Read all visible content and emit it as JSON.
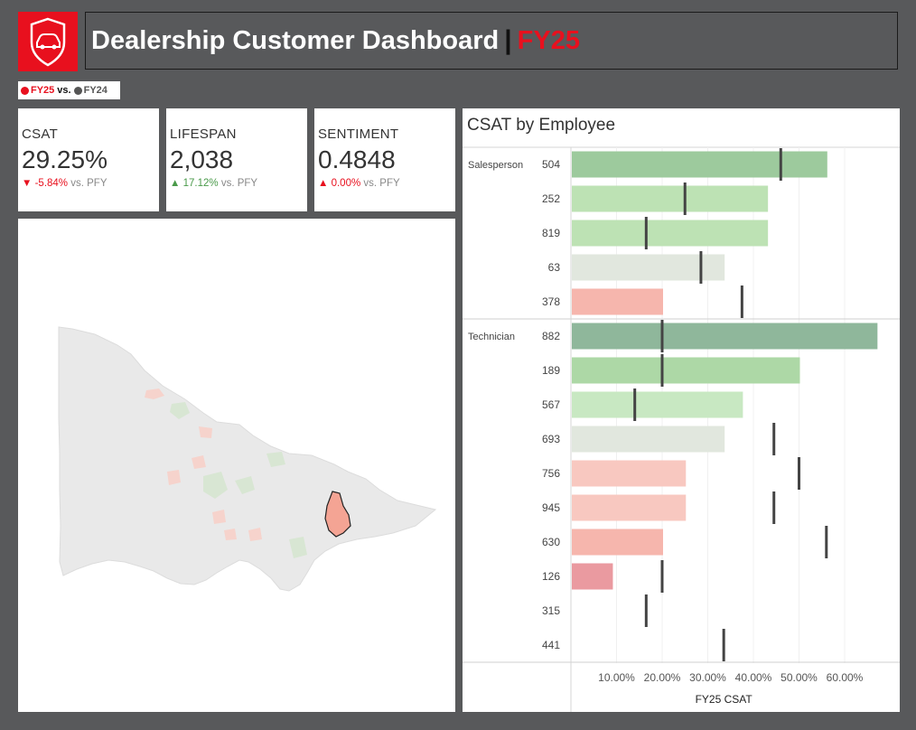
{
  "header": {
    "title": "Dealership Customer Dashboard",
    "separator": "|",
    "period": "FY25",
    "brand_color": "#e8101e"
  },
  "legend": {
    "current_label": "FY25",
    "vs_label": "vs.",
    "prior_label": "FY24",
    "current_color": "#e8101e",
    "prior_color": "#555555"
  },
  "kpis": [
    {
      "label": "CSAT",
      "value": "29.25%",
      "arrow": "▼",
      "delta": "-5.84%",
      "suffix": "vs. PFY",
      "color": "#e8101e"
    },
    {
      "label": "LIFESPAN",
      "value": "2,038",
      "arrow": "▲",
      "delta": "17.12%",
      "suffix": "vs. PFY",
      "color": "#4a9a4a"
    },
    {
      "label": "SENTIMENT",
      "value": "0.4848",
      "arrow": "▲",
      "delta": "0.00%",
      "suffix": "vs. PFY",
      "color": "#e8101e"
    }
  ],
  "chart_title": "CSAT by Employee",
  "chart_data": {
    "type": "bar",
    "orientation": "horizontal",
    "title": "CSAT by Employee",
    "xlabel": "FY25 CSAT",
    "xlim": [
      0,
      0.68
    ],
    "xticks": [
      "10.00%",
      "20.00%",
      "30.00%",
      "40.00%",
      "50.00%",
      "60.00%"
    ],
    "xtick_values": [
      0.1,
      0.2,
      0.3,
      0.4,
      0.5,
      0.6
    ],
    "groups": [
      {
        "name": "Salesperson",
        "employees": [
          {
            "id": "504",
            "fy25": 0.56,
            "fy24": 0.46,
            "color": "#9dca9d"
          },
          {
            "id": "252",
            "fy25": 0.43,
            "fy24": 0.25,
            "color": "#bde2b4"
          },
          {
            "id": "819",
            "fy25": 0.43,
            "fy24": 0.165,
            "color": "#bde2b4"
          },
          {
            "id": "63",
            "fy25": 0.335,
            "fy24": 0.285,
            "color": "#e1e7de"
          },
          {
            "id": "378",
            "fy25": 0.2,
            "fy24": 0.375,
            "color": "#f6b6ad"
          }
        ]
      },
      {
        "name": "Technician",
        "employees": [
          {
            "id": "882",
            "fy25": 0.67,
            "fy24": 0.2,
            "color": "#8fb79b"
          },
          {
            "id": "189",
            "fy25": 0.5,
            "fy24": 0.2,
            "color": "#add8a6"
          },
          {
            "id": "567",
            "fy25": 0.375,
            "fy24": 0.14,
            "color": "#c8e8c2"
          },
          {
            "id": "693",
            "fy25": 0.335,
            "fy24": 0.445,
            "color": "#e1e7de"
          },
          {
            "id": "756",
            "fy25": 0.25,
            "fy24": 0.5,
            "color": "#f8c8c0"
          },
          {
            "id": "945",
            "fy25": 0.25,
            "fy24": 0.445,
            "color": "#f8c8c0"
          },
          {
            "id": "630",
            "fy25": 0.2,
            "fy24": 0.56,
            "color": "#f6b6ad"
          },
          {
            "id": "126",
            "fy25": 0.09,
            "fy24": 0.2,
            "color": "#ea9aa0"
          },
          {
            "id": "315",
            "fy25": null,
            "fy24": 0.165,
            "color": "#ffffff"
          },
          {
            "id": "441",
            "fy25": null,
            "fy24": 0.335,
            "color": "#ffffff"
          }
        ]
      }
    ]
  }
}
